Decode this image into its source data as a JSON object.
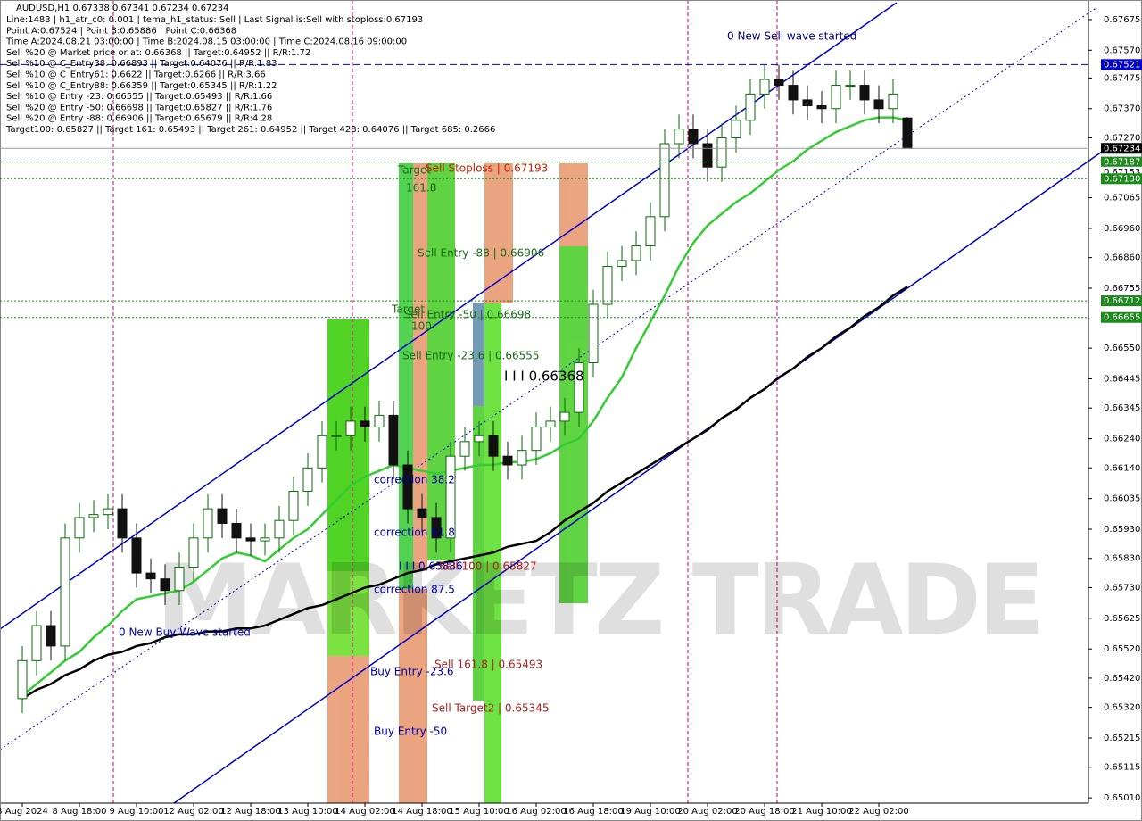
{
  "chart_data": {
    "type": "candlestick",
    "title": "AUDUSD,H1  0.67338 0.67341 0.67234 0.67234",
    "info_lines": [
      "Line:1483 | h1_atr_c0: 0.001 | tema_h1_status: Sell | Last Signal is:Sell with stoploss:0.67193",
      "Point A:0.67524 | Point B:0.65886 | Point C:0.66368",
      "Time A:2024.08.21 03:00:00 | Time B:2024.08.15 03:00:00 | Time C:2024.08.16 09:00:00",
      "Sell %20 @ Market price or at: 0.66368 || Target:0.64952 || R/R:1.72",
      "Sell %10 @ C_Entry38: 0.66893 || Target:0.64076 || R/R:1.83",
      "Sell %10 @ C_Entry61: 0.6622 || Target:0.6266 || R/R:3.66",
      "Sell %10 @ C_Entry88: 0.66359 || Target:0.65345 || R/R:1.22",
      "Sell %10 @ Entry -23: 0.66555 || Target:0.65493 || R/R:1.66",
      "Sell %20 @ Entry -50: 0.66698 || Target:0.65827 || R/R:1.76",
      "Sell %20 @ Entry -88: 0.66906 || Target:0.65679 || R/R:4.28",
      "Target100: 0.65827 || Target 161: 0.65493 || Target 261: 0.64952 || Target 423: 0.64076 || Target 685: 0.2666"
    ],
    "x": [
      "8 Aug 2024",
      null,
      null,
      null,
      "8 Aug 18:00",
      null,
      null,
      null,
      "9 Aug 10:00",
      null,
      null,
      null,
      "12 Aug 02:00",
      null,
      null,
      null,
      "12 Aug 18:00",
      null,
      null,
      null,
      "13 Aug 10:00",
      null,
      null,
      null,
      "14 Aug 02:00",
      null,
      null,
      null,
      "14 Aug 18:00",
      null,
      null,
      null,
      "15 Aug 10:00",
      null,
      null,
      null,
      "16 Aug 02:00",
      null,
      null,
      null,
      "16 Aug 18:00",
      null,
      null,
      null,
      "19 Aug 10:00",
      null,
      null,
      null,
      "20 Aug 02:00",
      null,
      null,
      null,
      "20 Aug 18:00",
      null,
      null,
      null,
      "21 Aug 10:00",
      null,
      null,
      null,
      "22 Aug 02:00",
      null,
      null
    ],
    "open": [
      0.6535,
      0.6548,
      0.656,
      0.6553,
      0.659,
      0.6597,
      0.6598,
      0.66,
      0.659,
      0.6578,
      0.6576,
      0.6572,
      0.658,
      0.659,
      0.66,
      0.6595,
      0.659,
      0.6589,
      0.659,
      0.6596,
      0.6606,
      0.6614,
      0.6625,
      0.6625,
      0.663,
      0.6628,
      0.6632,
      0.6615,
      0.66,
      0.6597,
      0.659,
      0.6618,
      0.6623,
      0.6625,
      0.6618,
      0.6615,
      0.662,
      0.6628,
      0.663,
      0.6633,
      0.665,
      0.667,
      0.6683,
      0.6685,
      0.669,
      0.67,
      0.6725,
      0.673,
      0.6725,
      0.6717,
      0.6727,
      0.6733,
      0.6742,
      0.6747,
      0.6745,
      0.674,
      0.6738,
      0.6737,
      0.6745,
      0.6745,
      0.674,
      0.6737,
      0.67338
    ],
    "high": [
      0.6553,
      0.6565,
      0.6565,
      0.6595,
      0.6602,
      0.6603,
      0.6605,
      0.6605,
      0.6595,
      0.6583,
      0.6581,
      0.6585,
      0.6595,
      0.6605,
      0.6605,
      0.66,
      0.6595,
      0.6595,
      0.6601,
      0.6611,
      0.6619,
      0.663,
      0.663,
      0.6635,
      0.6635,
      0.6637,
      0.6637,
      0.662,
      0.6605,
      0.6602,
      0.6623,
      0.6628,
      0.663,
      0.663,
      0.6623,
      0.6625,
      0.6633,
      0.6635,
      0.6638,
      0.6655,
      0.6675,
      0.6688,
      0.669,
      0.6695,
      0.6705,
      0.673,
      0.6735,
      0.6735,
      0.673,
      0.6732,
      0.6738,
      0.6747,
      0.6752,
      0.6752,
      0.675,
      0.6745,
      0.6743,
      0.675,
      0.675,
      0.675,
      0.6745,
      0.6747,
      0.67341
    ],
    "low": [
      0.653,
      0.6543,
      0.6548,
      0.6548,
      0.6585,
      0.6592,
      0.6593,
      0.6585,
      0.6573,
      0.6571,
      0.6567,
      0.6567,
      0.6575,
      0.6585,
      0.659,
      0.6585,
      0.6584,
      0.6584,
      0.6585,
      0.6591,
      0.6601,
      0.6609,
      0.662,
      0.662,
      0.6623,
      0.6623,
      0.661,
      0.6595,
      0.6592,
      0.6585,
      0.6585,
      0.6613,
      0.6618,
      0.6613,
      0.661,
      0.661,
      0.6615,
      0.6623,
      0.6625,
      0.6628,
      0.6645,
      0.6665,
      0.6678,
      0.668,
      0.6685,
      0.6695,
      0.672,
      0.672,
      0.6712,
      0.6712,
      0.6722,
      0.6728,
      0.6737,
      0.674,
      0.6735,
      0.6733,
      0.6732,
      0.6732,
      0.674,
      0.6735,
      0.6732,
      0.6732,
      0.67234
    ],
    "close": [
      0.6548,
      0.656,
      0.6553,
      0.659,
      0.6597,
      0.6598,
      0.66,
      0.659,
      0.6578,
      0.6576,
      0.6572,
      0.658,
      0.659,
      0.66,
      0.6595,
      0.659,
      0.6589,
      0.659,
      0.6596,
      0.6606,
      0.6614,
      0.6625,
      0.6625,
      0.663,
      0.6628,
      0.6632,
      0.6615,
      0.66,
      0.6597,
      0.659,
      0.6618,
      0.6623,
      0.6625,
      0.6618,
      0.6615,
      0.662,
      0.6628,
      0.663,
      0.6633,
      0.665,
      0.667,
      0.6683,
      0.6685,
      0.669,
      0.67,
      0.6725,
      0.673,
      0.6725,
      0.6717,
      0.6727,
      0.6733,
      0.6742,
      0.6747,
      0.6745,
      0.674,
      0.6738,
      0.6737,
      0.6745,
      0.6745,
      0.674,
      0.6737,
      0.6742,
      0.67234
    ],
    "up_color": "#0a6a0a",
    "down_color": "#111111",
    "overlays": [
      {
        "color": "#000000",
        "values": [
          0.6535,
          0.6538,
          0.654,
          0.6543,
          0.6545,
          0.6548,
          0.655,
          0.6551,
          0.6553,
          0.6554,
          0.6556,
          0.6557,
          0.6557,
          0.6558,
          0.6558,
          0.6559,
          0.6559,
          0.656,
          0.6562,
          0.6564,
          0.6566,
          0.6567,
          0.6569,
          0.6571,
          0.6573,
          0.6574,
          0.6576,
          0.6578,
          0.6579,
          0.6581,
          0.6582,
          0.6583,
          0.6584,
          0.6585,
          0.6587,
          0.6588,
          0.6589,
          0.6592,
          0.6596,
          0.6599,
          0.6602,
          0.6606,
          0.6609,
          0.6612,
          0.6615,
          0.6618,
          0.6621,
          0.6624,
          0.6627,
          0.6631,
          0.6634,
          0.6638,
          0.6641,
          0.6645,
          0.6648,
          0.6652,
          0.6655,
          0.6659,
          0.6662,
          0.6666,
          0.6669,
          0.6673,
          0.6676
        ]
      },
      {
        "color": "#33cc33",
        "values": [
          0.6536,
          0.654,
          0.6544,
          0.6548,
          0.6551,
          0.6556,
          0.656,
          0.6565,
          0.6569,
          0.657,
          0.6571,
          0.6572,
          0.6575,
          0.6579,
          0.6583,
          0.6585,
          0.6584,
          0.6582,
          0.6586,
          0.659,
          0.6593,
          0.6598,
          0.6603,
          0.6608,
          0.6611,
          0.6613,
          0.6615,
          0.6614,
          0.6613,
          0.6612,
          0.6613,
          0.6614,
          0.6615,
          0.6615,
          0.6616,
          0.6616,
          0.6617,
          0.6619,
          0.6622,
          0.6624,
          0.663,
          0.6638,
          0.6645,
          0.6655,
          0.6664,
          0.6673,
          0.6683,
          0.6691,
          0.6697,
          0.6701,
          0.6705,
          0.6708,
          0.6712,
          0.6716,
          0.6719,
          0.6723,
          0.6726,
          0.6729,
          0.6731,
          0.6733,
          0.6734,
          0.6734,
          0.6733
        ]
      }
    ],
    "ylim": [
      0.64992,
      0.67742
    ],
    "yticks": [
      0.67675,
      {
        "value": 0.6757,
        "label": "0.67570"
      },
      0.67475,
      {
        "value": 0.6737,
        "label": "0.67370"
      },
      {
        "value": 0.6727,
        "label": "0.67270"
      },
      0.67065,
      {
        "value": 0.6696,
        "label": "0.66960"
      },
      {
        "value": 0.6686,
        "label": "0.66860"
      },
      0.66755,
      {
        "value": 0.6665,
        "label": "0.66650"
      },
      {
        "value": 0.6655,
        "label": "0.66550"
      },
      0.66445,
      0.66345,
      {
        "value": 0.6624,
        "label": "0.66240"
      },
      {
        "value": 0.6614,
        "label": "0.66140"
      },
      0.66035,
      {
        "value": 0.6593,
        "label": "0.65930"
      },
      {
        "value": 0.6583,
        "label": "0.65830"
      },
      {
        "value": 0.6573,
        "label": "0.65730"
      },
      0.65625,
      {
        "value": 0.6552,
        "label": "0.65520"
      },
      {
        "value": 0.6542,
        "label": "0.65420"
      },
      {
        "value": 0.6532,
        "label": "0.65320"
      },
      0.65215,
      0.65115,
      {
        "value": 0.6501,
        "label": "0.65010"
      }
    ],
    "price_levels": [
      {
        "price": 0.67521,
        "color": "#0000cc",
        "line": "dashed"
      },
      {
        "price": 0.67234,
        "color": "#000000",
        "line": "solid"
      },
      {
        "price": 0.67187,
        "color": "#1a8a1a",
        "line": "dotted"
      },
      {
        "price": 0.67153,
        "color": "#ffffff",
        "line": "none"
      },
      {
        "price": {
          "value": 0.6713,
          "label": "0.67130"
        },
        "color": "#1a8a1a",
        "line": "dotted"
      },
      {
        "price": 0.66712,
        "color": "#1a8a1a",
        "line": "dotted"
      },
      {
        "price": 0.66655,
        "color": "#1a8a1a",
        "line": "dotted"
      }
    ],
    "annotations": [
      {
        "text": "0 New Sell wave started",
        "color": "#000080"
      },
      {
        "text": "Target",
        "color": "#1a6b1a"
      },
      {
        "text": "161.8",
        "color": "#1a6b1a"
      },
      {
        "text": "Sell Stoploss | 0.67193",
        "color": "#cc2200"
      },
      {
        "text": "Sell Entry -88 | 0.66906",
        "color": "#1a6b1a"
      },
      {
        "text": "Target",
        "color": "#1a6b1a"
      },
      {
        "text": "100",
        "color": "#1a6b1a"
      },
      {
        "text": "Sell Entry -50 | 0.66698",
        "color": "#1a6b1a"
      },
      {
        "text": "Sell Entry -23.6 | 0.66555",
        "color": "#1a6b1a"
      },
      {
        "text": "I I I 0.66368",
        "color": "#000000"
      },
      {
        "text": "correction 38.2",
        "color": "#0000aa"
      },
      {
        "text": "correction 61.8",
        "color": "#0000aa"
      },
      {
        "text": "I I I 0.65886",
        "color": "#0000aa"
      },
      {
        "text": "Sell 100 | 0.65827",
        "color": "#aa2222"
      },
      {
        "text": "correction 87.5",
        "color": "#0000aa"
      },
      {
        "text": "0 New Buy Wave started",
        "color": "#0000aa"
      },
      {
        "text": "Buy Entry -23.6",
        "color": "#0000aa"
      },
      {
        "text": "Sell 161.8 | 0.65493",
        "color": "#aa2222"
      },
      {
        "text": "Sell Target2 | 0.65345",
        "color": "#aa2222"
      },
      {
        "text": "Buy Entry -50",
        "color": "#0000aa"
      }
    ],
    "watermark": "MARKETZ TRADE"
  }
}
